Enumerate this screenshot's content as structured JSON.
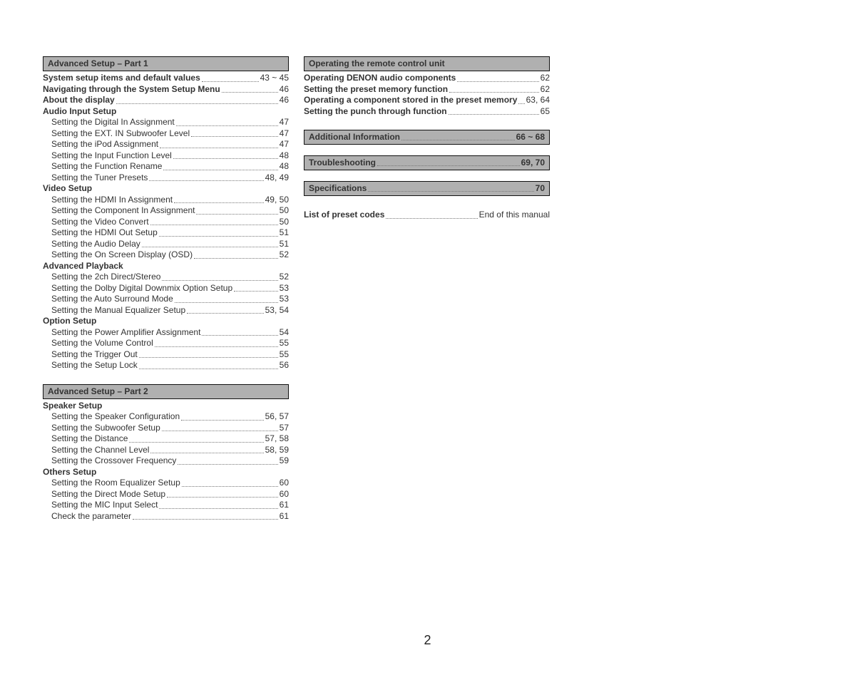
{
  "page_number": "2",
  "colors": {
    "header_bg": "#b0b0b0",
    "border": "#111111",
    "text": "#333333",
    "leader": "#777777"
  },
  "typography": {
    "font_family": "Arial, Helvetica, sans-serif",
    "body_fontsize_pt": 9,
    "header_fontsize_pt": 9,
    "page_number_fontsize_pt": 14
  },
  "left_column": [
    {
      "type": "header",
      "text": "Advanced Setup – Part 1"
    },
    {
      "type": "row",
      "bold": true,
      "label": "System setup items and default values",
      "page": "43 ~ 45"
    },
    {
      "type": "row",
      "bold": true,
      "label": "Navigating through the System Setup Menu",
      "page": "46"
    },
    {
      "type": "row",
      "bold": true,
      "label": "About the display",
      "page": "46"
    },
    {
      "type": "group",
      "label": "Audio Input Setup"
    },
    {
      "type": "row",
      "indent": true,
      "label": "Setting the Digital In Assignment",
      "page": "47"
    },
    {
      "type": "row",
      "indent": true,
      "label": "Setting the EXT. IN Subwoofer Level",
      "page": "47"
    },
    {
      "type": "row",
      "indent": true,
      "label": "Setting the iPod Assignment",
      "page": "47"
    },
    {
      "type": "row",
      "indent": true,
      "label": "Setting the Input Function Level",
      "page": "48"
    },
    {
      "type": "row",
      "indent": true,
      "label": "Setting the Function Rename",
      "page": "48"
    },
    {
      "type": "row",
      "indent": true,
      "label": "Setting the Tuner Presets",
      "page": "48, 49"
    },
    {
      "type": "group",
      "label": "Video Setup"
    },
    {
      "type": "row",
      "indent": true,
      "label": "Setting the HDMI In Assignment",
      "page": "49, 50"
    },
    {
      "type": "row",
      "indent": true,
      "label": "Setting the Component In Assignment",
      "page": "50"
    },
    {
      "type": "row",
      "indent": true,
      "label": "Setting the Video Convert",
      "page": "50"
    },
    {
      "type": "row",
      "indent": true,
      "label": "Setting the HDMI Out Setup",
      "page": "51"
    },
    {
      "type": "row",
      "indent": true,
      "label": "Setting the Audio Delay",
      "page": "51"
    },
    {
      "type": "row",
      "indent": true,
      "label": "Setting the On Screen Display (OSD)",
      "page": "52"
    },
    {
      "type": "group",
      "label": "Advanced Playback"
    },
    {
      "type": "row",
      "indent": true,
      "label": "Setting the 2ch Direct/Stereo",
      "page": "52"
    },
    {
      "type": "row",
      "indent": true,
      "label": "Setting the Dolby Digital Downmix Option Setup",
      "page": "53"
    },
    {
      "type": "row",
      "indent": true,
      "label": "Setting the Auto Surround Mode",
      "page": "53"
    },
    {
      "type": "row",
      "indent": true,
      "label": "Setting the Manual Equalizer Setup",
      "page": "53, 54"
    },
    {
      "type": "group",
      "label": "Option Setup"
    },
    {
      "type": "row",
      "indent": true,
      "label": "Setting the Power Amplifier Assignment",
      "page": "54"
    },
    {
      "type": "row",
      "indent": true,
      "label": "Setting the Volume Control",
      "page": "55"
    },
    {
      "type": "row",
      "indent": true,
      "label": "Setting the Trigger Out",
      "page": "55"
    },
    {
      "type": "row",
      "indent": true,
      "label": "Setting the Setup Lock",
      "page": "56"
    },
    {
      "type": "gap"
    },
    {
      "type": "header",
      "text": "Advanced Setup – Part 2"
    },
    {
      "type": "group",
      "label": "Speaker Setup"
    },
    {
      "type": "row",
      "indent": true,
      "label": "Setting the Speaker Configuration",
      "page": "56, 57"
    },
    {
      "type": "row",
      "indent": true,
      "label": "Setting the Subwoofer Setup",
      "page": "57"
    },
    {
      "type": "row",
      "indent": true,
      "label": "Setting the Distance",
      "page": "57, 58"
    },
    {
      "type": "row",
      "indent": true,
      "label": "Setting the Channel Level",
      "page": "58, 59"
    },
    {
      "type": "row",
      "indent": true,
      "label": "Setting the Crossover Frequency",
      "page": "59"
    },
    {
      "type": "group",
      "label": "Others Setup"
    },
    {
      "type": "row",
      "indent": true,
      "label": "Setting the Room Equalizer Setup",
      "page": "60"
    },
    {
      "type": "row",
      "indent": true,
      "label": "Setting the Direct Mode Setup",
      "page": "60"
    },
    {
      "type": "row",
      "indent": true,
      "label": "Setting the MIC Input Select",
      "page": "61"
    },
    {
      "type": "row",
      "indent": true,
      "label": "Check the parameter",
      "page": "61"
    }
  ],
  "right_column": [
    {
      "type": "header",
      "text": "Operating the remote control unit"
    },
    {
      "type": "row",
      "bold": true,
      "label": "Operating DENON audio components",
      "page": "62"
    },
    {
      "type": "row",
      "bold": true,
      "label": "Setting the preset memory function",
      "page": "62"
    },
    {
      "type": "row",
      "bold": true,
      "label": "Operating a component stored in the preset memory",
      "page": "63, 64"
    },
    {
      "type": "row",
      "bold": true,
      "label": "Setting the punch through function",
      "page": "65"
    },
    {
      "type": "gap"
    },
    {
      "type": "header-row",
      "label": "Additional Information",
      "page": "66 ~ 68"
    },
    {
      "type": "gap-sm"
    },
    {
      "type": "header-row",
      "label": "Troubleshooting",
      "page": "69, 70"
    },
    {
      "type": "gap-sm"
    },
    {
      "type": "header-row",
      "label": "Specifications",
      "page": "70"
    },
    {
      "type": "gap"
    },
    {
      "type": "row",
      "bold": true,
      "label": "List of preset codes",
      "page": "End of this manual"
    }
  ]
}
